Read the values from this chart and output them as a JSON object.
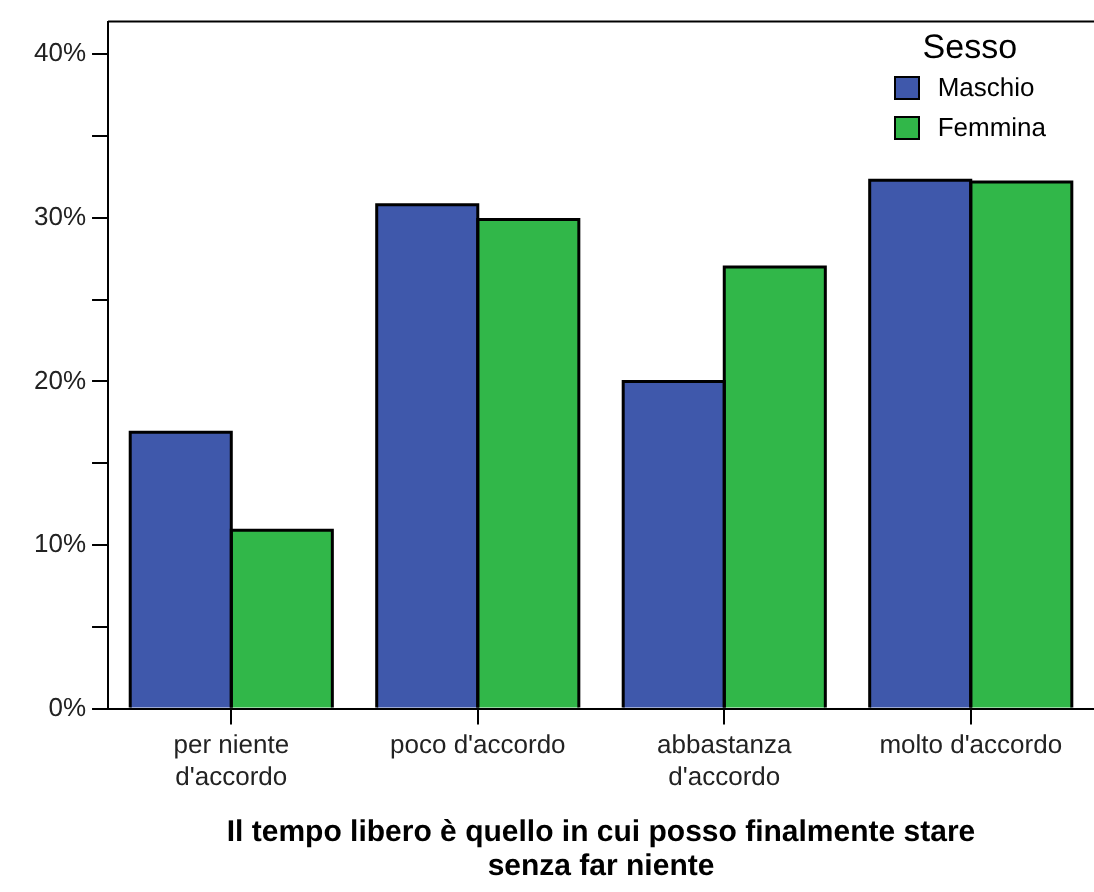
{
  "chart_data": {
    "type": "bar",
    "xlabel": "Il tempo libero è quello in cui posso finalmente stare senza far niente",
    "legend_title": "Sesso",
    "legend": "top right",
    "categories": [
      "per niente d'accordo",
      "poco d'accordo",
      "abbastanza d'accordo",
      "molto d'accordo"
    ],
    "series": [
      {
        "name": "Maschio",
        "color": "#3f58ab",
        "values": [
          16.9,
          30.8,
          20.0,
          32.3
        ]
      },
      {
        "name": "Femmina",
        "color": "#31b749",
        "values": [
          10.9,
          29.9,
          27.0,
          32.2
        ]
      }
    ],
    "ylim": [
      0,
      42
    ],
    "yticks": [
      {
        "value": 0,
        "label": "0%"
      },
      {
        "value": 5,
        "label": null
      },
      {
        "value": 10,
        "label": "10%"
      },
      {
        "value": 15,
        "label": null
      },
      {
        "value": 20,
        "label": "20%"
      },
      {
        "value": 25,
        "label": null
      },
      {
        "value": 30,
        "label": "30%"
      },
      {
        "value": 35,
        "label": null
      },
      {
        "value": 40,
        "label": "40%"
      }
    ],
    "grid": false
  }
}
